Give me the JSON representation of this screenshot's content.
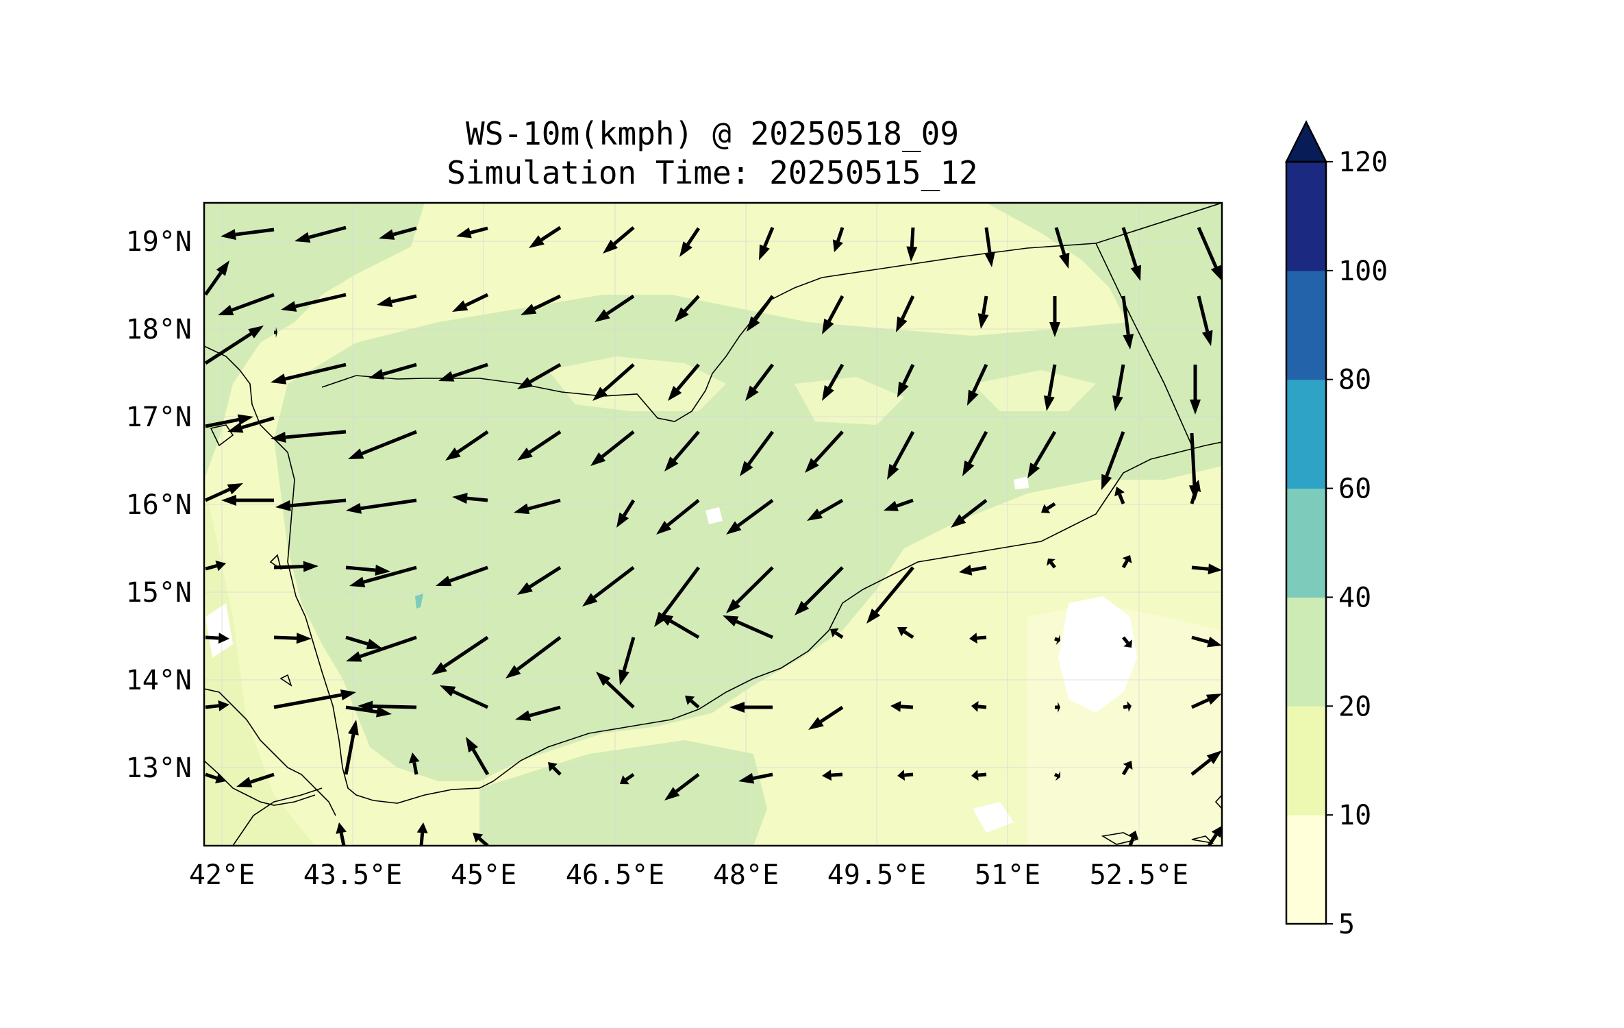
{
  "title_line1": "WS-10m(kmph) @ 20250518_09",
  "title_line2": "Simulation Time: 20250515_12",
  "x_ticks": [
    "42°E",
    "43.5°E",
    "45°E",
    "46.5°E",
    "48°E",
    "49.5°E",
    "51°E",
    "52.5°E"
  ],
  "y_ticks": [
    "19°N",
    "18°N",
    "17°N",
    "16°N",
    "15°N",
    "14°N",
    "13°N"
  ],
  "colorbar": {
    "levels": [
      "5",
      "10",
      "20",
      "40",
      "60",
      "80",
      "100",
      "120"
    ],
    "colors": [
      "#ffffd9",
      "#edf8b1",
      "#cdebb4",
      "#7ccbbb",
      "#2fa3c6",
      "#2263aa",
      "#1b2a80",
      "#081d58"
    ],
    "extend": "max"
  },
  "colors": {
    "land_calm": "#f7fcc8",
    "moderate": "#d3ecb7",
    "light": "#edf8b1",
    "blank": "#ffffff",
    "coast": "#000000",
    "grid": "#d9d9d9"
  },
  "map": {
    "lon_range": [
      41.8,
      53.8
    ],
    "lat_range": [
      12.1,
      19.5
    ],
    "grid_lines": true
  }
}
